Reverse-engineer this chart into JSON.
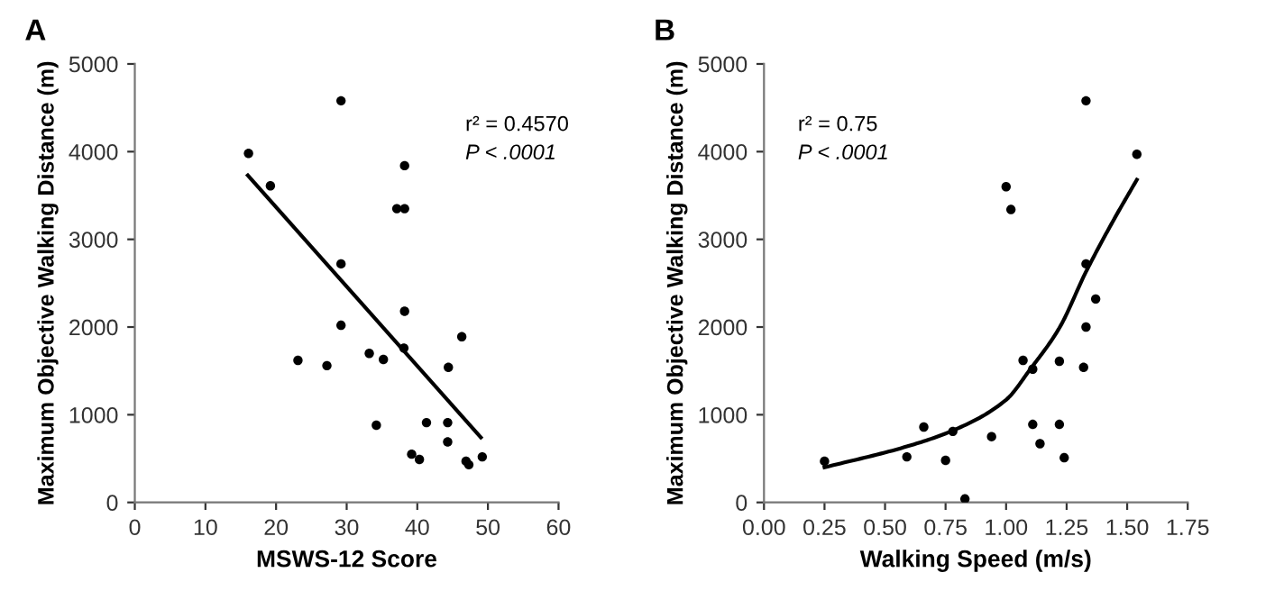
{
  "chart_data": [
    {
      "type": "scatter",
      "title": "A",
      "xlabel": "MSWS-12 Score",
      "ylabel": "Maximum Objective Walking Distance (m)",
      "annotations": [
        "r² = 0.4570",
        "P < .0001"
      ],
      "grid": false,
      "xlim": [
        0,
        60
      ],
      "ylim": [
        0,
        5000
      ],
      "xticks": [
        0,
        10,
        20,
        30,
        40,
        50,
        60
      ],
      "yticks": [
        0,
        1000,
        2000,
        3000,
        4000,
        5000
      ],
      "series": [
        {
          "color": "#000000",
          "marker": "circle",
          "x": [
            16.1,
            19.2,
            29.2,
            29.2,
            29.2,
            23.1,
            27.2,
            33.2,
            35.2,
            34.2,
            37.1,
            38.2,
            38.2,
            38.2,
            38.1,
            46.3,
            44.4,
            41.3,
            44.3,
            44.3,
            39.2,
            40.3,
            46.9,
            47.3,
            49.2
          ],
          "values": [
            3980,
            3610,
            4580,
            2720,
            2020,
            1620,
            1560,
            1700,
            1630,
            880,
            3350,
            3350,
            3840,
            2180,
            1760,
            1890,
            1540,
            910,
            910,
            690,
            550,
            490,
            470,
            430,
            520
          ]
        },
        {
          "type": "line",
          "color": "#000000",
          "marker": "none",
          "x": [
            16,
            49
          ],
          "values": [
            3730,
            740
          ]
        }
      ]
    },
    {
      "type": "scatter",
      "title": "B",
      "xlabel": "Walking Speed (m/s)",
      "ylabel": "Maximum Objective Walking Distance (m)",
      "annotations": [
        "r² = 0.75",
        "P < .0001"
      ],
      "grid": false,
      "xlim": [
        0,
        1.75
      ],
      "ylim": [
        0,
        5000
      ],
      "xticks": [
        {
          "value": 0,
          "label": "0.00"
        },
        {
          "value": 0.25,
          "label": "0.25"
        },
        {
          "value": 0.5,
          "label": "0.50"
        },
        {
          "value": 0.75,
          "label": "0.75"
        },
        {
          "value": 1,
          "label": "1.00"
        },
        {
          "value": 1.25,
          "label": "1.25"
        },
        {
          "value": 1.5,
          "label": "1.50"
        },
        {
          "value": 1.75,
          "label": "1.75"
        }
      ],
      "yticks": [
        0,
        1000,
        2000,
        3000,
        4000,
        5000
      ],
      "series": [
        {
          "color": "#000000",
          "marker": "circle",
          "x": [
            0.25,
            0.59,
            0.66,
            0.75,
            0.78,
            0.83,
            0.94,
            1.0,
            1.02,
            1.07,
            1.11,
            1.11,
            1.14,
            1.22,
            1.22,
            1.24,
            1.32,
            1.33,
            1.33,
            1.33,
            1.37,
            1.54
          ],
          "values": [
            470,
            520,
            860,
            480,
            810,
            40,
            750,
            3600,
            3340,
            1620,
            1520,
            890,
            670,
            1610,
            890,
            510,
            1540,
            4580,
            2720,
            2000,
            2320,
            3970
          ]
        },
        {
          "type": "line",
          "color": "#000000",
          "marker": "none",
          "x": [
            0.25,
            0.58,
            0.78,
            1.0,
            1.1,
            1.22,
            1.33,
            1.44,
            1.54
          ],
          "values": [
            400,
            630,
            820,
            1170,
            1520,
            1990,
            2630,
            3200,
            3680
          ]
        }
      ]
    }
  ]
}
